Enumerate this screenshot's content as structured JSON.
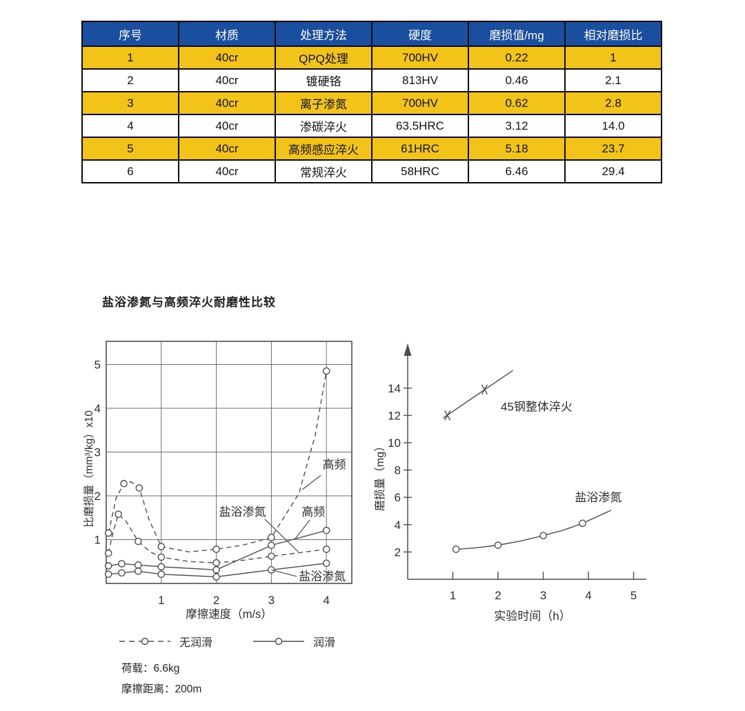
{
  "colors": {
    "table_header_bg": "#1a4e9e",
    "table_header_text": "#ffffff",
    "table_stripe_bg": "#f2c318",
    "table_border": "#0a0a0a",
    "chart_line": "#4d4d4d",
    "chart_text": "#2e2e2e"
  },
  "table": {
    "columns": [
      "序号",
      "材质",
      "处理方法",
      "硬度",
      "磨损值/mg",
      "相对磨损比"
    ],
    "rows": [
      [
        "1",
        "40cr",
        "QPQ处理",
        "700HV",
        "0.22",
        "1"
      ],
      [
        "2",
        "40cr",
        "镀硬铬",
        "813HV",
        "0.46",
        "2.1"
      ],
      [
        "3",
        "40cr",
        "离子渗氮",
        "700HV",
        "0.62",
        "2.8"
      ],
      [
        "4",
        "40cr",
        "渗碳淬火",
        "63.5HRC",
        "3.12",
        "14.0"
      ],
      [
        "5",
        "40cr",
        "高频感应淬火",
        "61HRC",
        "5.18",
        "23.7"
      ],
      [
        "6",
        "40cr",
        "常规淬火",
        "58HRC",
        "6.46",
        "29.4"
      ]
    ]
  },
  "section_title": "盐浴渗氮与高频淬火耐磨性比较",
  "chart_data": [
    {
      "id": "left",
      "type": "line",
      "title": "盐浴渗氮与高频淬火耐磨性比较",
      "xlabel": "摩擦速度（m/s）",
      "ylabel": "比磨损量（mm³/kg）x10",
      "xlim": [
        0,
        4.46
      ],
      "ylim": [
        0,
        5.53
      ],
      "xticks": [
        1,
        2,
        3,
        4
      ],
      "yticks": [
        1,
        2,
        3,
        4,
        5
      ],
      "grid": true,
      "box": true,
      "series": [
        {
          "name": "高频-无润滑",
          "style": "dashed",
          "marker": "circle",
          "points": [
            [
              0.04,
              1.15
            ],
            [
              0.32,
              2.28
            ],
            [
              0.6,
              2.18
            ],
            [
              1,
              0.84
            ],
            [
              2,
              0.78
            ],
            [
              3,
              1.05
            ],
            [
              4,
              4.85
            ]
          ],
          "curve": [
            [
              0.04,
              1.15
            ],
            [
              0.18,
              1.95
            ],
            [
              0.32,
              2.28
            ],
            [
              0.45,
              2.32
            ],
            [
              0.6,
              2.18
            ],
            [
              0.78,
              1.45
            ],
            [
              1,
              0.84
            ],
            [
              1.5,
              0.72
            ],
            [
              2,
              0.78
            ],
            [
              2.5,
              0.88
            ],
            [
              3,
              1.05
            ],
            [
              3.5,
              2.05
            ],
            [
              3.8,
              3.4
            ],
            [
              4,
              4.85
            ]
          ]
        },
        {
          "name": "盐浴渗氮-无润滑",
          "style": "dashed",
          "marker": "circle",
          "points": [
            [
              0.04,
              0.69
            ],
            [
              0.22,
              1.58
            ],
            [
              0.58,
              0.96
            ],
            [
              1,
              0.6
            ],
            [
              2,
              0.47
            ],
            [
              3,
              0.62
            ],
            [
              4,
              0.78
            ]
          ],
          "curve": [
            [
              0.04,
              0.69
            ],
            [
              0.12,
              1.15
            ],
            [
              0.22,
              1.58
            ],
            [
              0.36,
              1.42
            ],
            [
              0.58,
              0.96
            ],
            [
              0.8,
              0.72
            ],
            [
              1,
              0.6
            ],
            [
              1.5,
              0.5
            ],
            [
              2,
              0.47
            ],
            [
              2.5,
              0.53
            ],
            [
              3,
              0.62
            ],
            [
              3.5,
              0.7
            ],
            [
              4,
              0.78
            ]
          ]
        },
        {
          "name": "高频-润滑",
          "style": "solid",
          "marker": "circle",
          "points": [
            [
              0.04,
              0.4
            ],
            [
              0.28,
              0.45
            ],
            [
              0.58,
              0.42
            ],
            [
              1,
              0.38
            ],
            [
              2,
              0.31
            ],
            [
              3,
              0.87
            ],
            [
              4,
              1.21
            ]
          ],
          "curve": [
            [
              0.04,
              0.4
            ],
            [
              0.28,
              0.45
            ],
            [
              0.58,
              0.42
            ],
            [
              1,
              0.38
            ],
            [
              2,
              0.31
            ],
            [
              3,
              0.87
            ],
            [
              4,
              1.21
            ]
          ]
        },
        {
          "name": "盐浴渗氮-润滑",
          "style": "solid",
          "marker": "circle",
          "points": [
            [
              0.04,
              0.21
            ],
            [
              0.28,
              0.24
            ],
            [
              0.58,
              0.28
            ],
            [
              1,
              0.21
            ],
            [
              2,
              0.15
            ],
            [
              3,
              0.31
            ],
            [
              4,
              0.46
            ]
          ],
          "curve": [
            [
              0.04,
              0.21
            ],
            [
              0.28,
              0.24
            ],
            [
              0.58,
              0.28
            ],
            [
              1,
              0.21
            ],
            [
              2,
              0.15
            ],
            [
              3,
              0.31
            ],
            [
              4,
              0.46
            ]
          ]
        }
      ],
      "annotations": [
        {
          "text": "高频",
          "x": 3.93,
          "y": 2.62,
          "leader": [
            [
              3.9,
              2.47
            ],
            [
              3.56,
              2.14
            ]
          ]
        },
        {
          "text": "盐浴渗氮",
          "x": 2.05,
          "y": 1.54,
          "leader": [
            [
              2.88,
              1.47
            ],
            [
              3.49,
              0.72
            ]
          ]
        },
        {
          "text": "高频",
          "x": 3.55,
          "y": 1.54,
          "leader": [
            [
              3.7,
              1.45
            ],
            [
              3.42,
              1.0
            ]
          ]
        },
        {
          "text": "盐浴渗氮",
          "x": 3.5,
          "y": 0.07,
          "leader": [
            [
              3.46,
              0.16
            ],
            [
              3.0,
              0.31
            ]
          ]
        }
      ],
      "legend": [
        {
          "label": "无润滑",
          "style": "dashed"
        },
        {
          "label": "润滑",
          "style": "solid"
        }
      ],
      "notes": [
        "荷载：6.6kg",
        "摩擦距离：200m"
      ]
    },
    {
      "id": "right",
      "type": "line",
      "xlabel": "实验时间（h）",
      "ylabel": "磨损量（mg）",
      "xlim": [
        0,
        5.4
      ],
      "ylim": [
        0,
        16.5
      ],
      "xticks": [
        1,
        2,
        3,
        4,
        5
      ],
      "yticks": [
        2,
        4,
        6,
        8,
        10,
        12,
        14
      ],
      "grid": false,
      "box": false,
      "y_axis_arrow": true,
      "series": [
        {
          "name": "45钢整体淬火",
          "style": "solid",
          "marker": "x",
          "points": [
            [
              0.88,
              12.0
            ],
            [
              1.7,
              13.9
            ]
          ],
          "curve": [
            [
              0.78,
              11.8
            ],
            [
              2.33,
              15.3
            ]
          ]
        },
        {
          "name": "盐浴渗氮",
          "style": "solid",
          "marker": "circle",
          "points": [
            [
              1.07,
              2.2
            ],
            [
              2.0,
              2.5
            ],
            [
              3.0,
              3.2
            ],
            [
              3.87,
              4.1
            ]
          ],
          "curve": [
            [
              1.03,
              2.18
            ],
            [
              1.5,
              2.3
            ],
            [
              2.0,
              2.5
            ],
            [
              2.5,
              2.8
            ],
            [
              3.0,
              3.2
            ],
            [
              3.45,
              3.6
            ],
            [
              3.87,
              4.1
            ],
            [
              4.5,
              5.05
            ]
          ]
        }
      ],
      "annotations": [
        {
          "text": "45钢整体淬火",
          "x": 2.06,
          "y": 12.35
        },
        {
          "text": "盐浴渗氮",
          "x": 3.7,
          "y": 5.7
        }
      ]
    }
  ]
}
